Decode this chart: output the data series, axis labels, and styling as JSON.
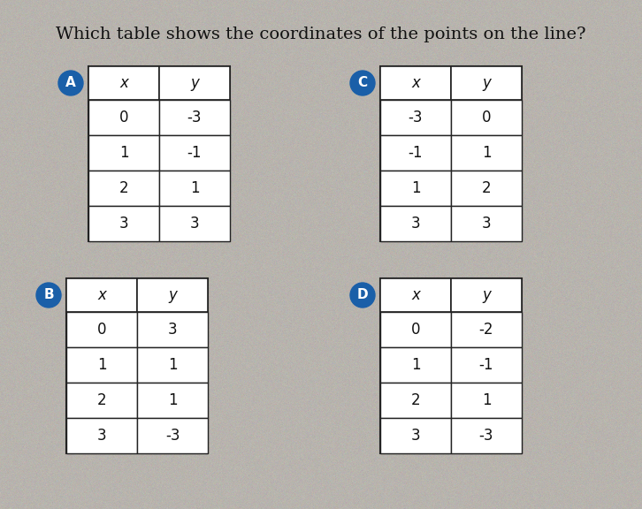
{
  "title": "Which table shows the coordinates of the points on the line?",
  "background_color": "#b8b4ae",
  "tables": {
    "A": {
      "label": "A",
      "headers": [
        "x",
        "y"
      ],
      "rows": [
        [
          "0",
          "-3"
        ],
        [
          "1",
          "-1"
        ],
        [
          "2",
          "1"
        ],
        [
          "3",
          "3"
        ]
      ]
    },
    "B": {
      "label": "B",
      "headers": [
        "x",
        "y"
      ],
      "rows": [
        [
          "0",
          "3"
        ],
        [
          "1",
          "1"
        ],
        [
          "2",
          "1"
        ],
        [
          "3",
          "-3"
        ]
      ]
    },
    "C": {
      "label": "C",
      "headers": [
        "x",
        "y"
      ],
      "rows": [
        [
          "-3",
          "0"
        ],
        [
          "-1",
          "1"
        ],
        [
          "1",
          "2"
        ],
        [
          "3",
          "3"
        ]
      ]
    },
    "D": {
      "label": "D",
      "headers": [
        "x",
        "y"
      ],
      "rows": [
        [
          "0",
          "-2"
        ],
        [
          "1",
          "-1"
        ],
        [
          "2",
          "1"
        ],
        [
          "3",
          "-3"
        ]
      ]
    }
  },
  "circle_color": "#1a5fa8",
  "circle_text_color": "#ffffff",
  "table_bg": "#ffffff",
  "line_color": "#222222",
  "text_color": "#111111",
  "title_fontsize": 14,
  "cell_fontsize": 12,
  "header_fontstyle": "italic"
}
